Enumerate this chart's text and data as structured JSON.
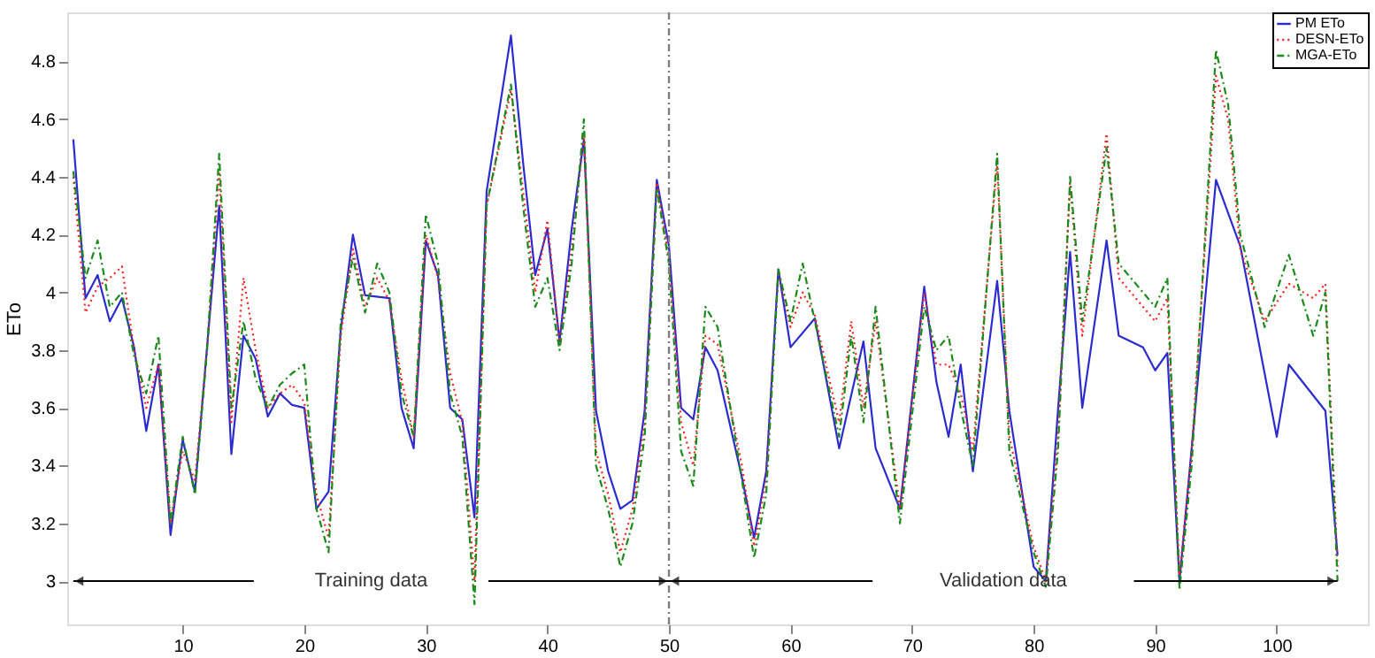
{
  "chart_data": {
    "type": "line",
    "ylabel": "ETo",
    "xlim": [
      0.5,
      107.5
    ],
    "ylim": [
      2.85,
      4.97
    ],
    "xticks": [
      10,
      20,
      30,
      40,
      50,
      60,
      70,
      80,
      90,
      100
    ],
    "yticks": [
      3,
      3.2,
      3.4,
      3.6,
      3.8,
      4,
      4.2,
      4.4,
      4.6,
      4.8
    ],
    "grid": false,
    "legend": "top right",
    "marker": "none",
    "ref_lines": [
      {
        "axis": "x",
        "value": 50,
        "color": "#7f7f7f",
        "line_style": "dashed"
      }
    ],
    "annotations": [
      "Training data",
      "Validation data"
    ],
    "series": [
      {
        "name": "PM ETo",
        "color": "#2b2bd0",
        "line_style": "solid",
        "x": [
          1,
          2,
          3,
          4,
          5,
          6,
          7,
          8,
          9,
          10,
          11,
          12,
          13,
          14,
          15,
          16,
          17,
          18,
          19,
          20,
          21,
          22,
          23,
          24,
          25,
          27,
          28,
          29,
          30,
          31,
          32,
          33,
          34,
          35,
          37,
          38,
          39,
          40,
          41,
          42,
          43,
          44,
          45,
          46,
          47,
          48,
          49,
          50,
          51,
          52,
          53,
          54,
          56,
          57,
          58,
          59,
          60,
          62,
          64,
          66,
          67,
          69,
          71,
          72,
          73,
          74,
          75,
          77,
          78,
          80,
          81,
          82,
          83,
          84,
          86,
          87,
          89,
          90,
          91,
          92,
          93,
          95,
          97,
          100,
          101,
          104,
          105
        ],
        "values": [
          4.53,
          3.98,
          4.06,
          3.9,
          3.98,
          3.81,
          3.52,
          3.75,
          3.16,
          3.49,
          3.31,
          3.81,
          4.3,
          3.44,
          3.85,
          3.77,
          3.57,
          3.65,
          3.61,
          3.6,
          3.25,
          3.31,
          3.87,
          4.2,
          3.99,
          3.98,
          3.6,
          3.46,
          4.18,
          4.06,
          3.6,
          3.56,
          3.22,
          4.35,
          4.89,
          4.45,
          4.06,
          4.22,
          3.83,
          4.22,
          4.53,
          3.59,
          3.38,
          3.25,
          3.28,
          3.59,
          4.39,
          4.16,
          3.6,
          3.56,
          3.81,
          3.73,
          3.36,
          3.15,
          3.38,
          4.08,
          3.81,
          3.91,
          3.46,
          3.83,
          3.46,
          3.25,
          4.02,
          3.69,
          3.5,
          3.75,
          3.38,
          4.04,
          3.59,
          3.05,
          3.0,
          3.59,
          4.14,
          3.6,
          4.18,
          3.85,
          3.81,
          3.73,
          3.79,
          3.0,
          3.46,
          4.39,
          4.16,
          3.5,
          3.75,
          3.59,
          3.09
        ]
      },
      {
        "name": "DESN-ETo",
        "color": "#ff2020",
        "line_style": "dotted",
        "x": [
          1,
          2,
          3,
          4,
          5,
          6,
          7,
          8,
          9,
          10,
          11,
          12,
          13,
          14,
          15,
          16,
          17,
          18,
          19,
          20,
          21,
          22,
          23,
          24,
          25,
          26,
          27,
          28,
          29,
          30,
          31,
          32,
          33,
          34,
          35,
          37,
          38,
          39,
          40,
          41,
          42,
          43,
          44,
          45,
          46,
          47,
          48,
          49,
          50,
          51,
          52,
          53,
          54,
          56,
          57,
          58,
          59,
          60,
          61,
          62,
          64,
          65,
          66,
          67,
          69,
          71,
          72,
          73,
          74,
          75,
          77,
          78,
          80,
          81,
          82,
          83,
          84,
          86,
          87,
          89,
          90,
          91,
          92,
          93,
          95,
          96,
          97,
          99,
          101,
          103,
          104,
          105
        ],
        "values": [
          4.4,
          3.93,
          4.02,
          4.05,
          4.09,
          3.8,
          3.6,
          3.75,
          3.2,
          3.45,
          3.35,
          3.8,
          4.42,
          3.55,
          4.05,
          3.8,
          3.6,
          3.65,
          3.68,
          3.62,
          3.3,
          3.15,
          3.85,
          4.15,
          3.95,
          4.05,
          3.97,
          3.7,
          3.5,
          4.2,
          4.05,
          3.72,
          3.55,
          3.0,
          4.3,
          4.7,
          4.35,
          4.0,
          4.25,
          3.82,
          4.15,
          4.55,
          3.45,
          3.3,
          3.1,
          3.25,
          3.55,
          4.38,
          4.12,
          3.55,
          3.4,
          3.85,
          3.82,
          3.4,
          3.12,
          3.35,
          4.07,
          3.88,
          4.0,
          3.92,
          3.55,
          3.9,
          3.6,
          3.9,
          3.25,
          4.0,
          3.75,
          3.75,
          3.65,
          3.45,
          4.45,
          3.5,
          3.12,
          3.0,
          3.5,
          4.38,
          3.85,
          4.55,
          4.05,
          3.95,
          3.9,
          3.98,
          3.02,
          3.45,
          4.75,
          4.6,
          4.15,
          3.9,
          4.03,
          3.98,
          4.03,
          3.05
        ]
      },
      {
        "name": "MGA-ETo",
        "color": "#1a8a1a",
        "line_style": "dashed",
        "x": [
          1,
          2,
          3,
          4,
          5,
          6,
          7,
          8,
          9,
          10,
          11,
          12,
          13,
          14,
          15,
          16,
          17,
          18,
          19,
          20,
          21,
          22,
          23,
          24,
          25,
          26,
          27,
          28,
          29,
          30,
          31,
          32,
          33,
          34,
          35,
          37,
          38,
          39,
          40,
          41,
          42,
          43,
          44,
          45,
          46,
          47,
          48,
          49,
          50,
          51,
          52,
          53,
          54,
          56,
          57,
          58,
          59,
          60,
          61,
          62,
          64,
          65,
          66,
          67,
          69,
          71,
          72,
          73,
          74,
          75,
          77,
          78,
          80,
          81,
          82,
          83,
          84,
          86,
          87,
          89,
          90,
          91,
          92,
          93,
          95,
          96,
          97,
          99,
          101,
          103,
          104,
          105
        ],
        "values": [
          4.42,
          4.05,
          4.18,
          3.95,
          4.0,
          3.78,
          3.65,
          3.85,
          3.2,
          3.5,
          3.3,
          3.8,
          4.48,
          3.6,
          3.9,
          3.7,
          3.6,
          3.68,
          3.72,
          3.75,
          3.25,
          3.1,
          3.9,
          4.12,
          3.93,
          4.1,
          4.0,
          3.65,
          3.5,
          4.27,
          4.1,
          3.65,
          3.5,
          2.92,
          4.3,
          4.72,
          4.3,
          3.95,
          4.05,
          3.8,
          4.1,
          4.6,
          3.4,
          3.25,
          3.05,
          3.2,
          3.5,
          4.36,
          4.1,
          3.45,
          3.33,
          3.95,
          3.88,
          3.35,
          3.08,
          3.3,
          4.08,
          3.9,
          4.1,
          3.9,
          3.5,
          3.85,
          3.55,
          3.95,
          3.2,
          3.95,
          3.8,
          3.85,
          3.6,
          3.4,
          4.48,
          3.45,
          3.1,
          2.98,
          3.45,
          4.4,
          3.9,
          4.5,
          4.1,
          4.0,
          3.95,
          4.05,
          2.97,
          3.4,
          4.84,
          4.65,
          4.2,
          3.88,
          4.13,
          3.85,
          4.0,
          3.0
        ]
      }
    ]
  }
}
